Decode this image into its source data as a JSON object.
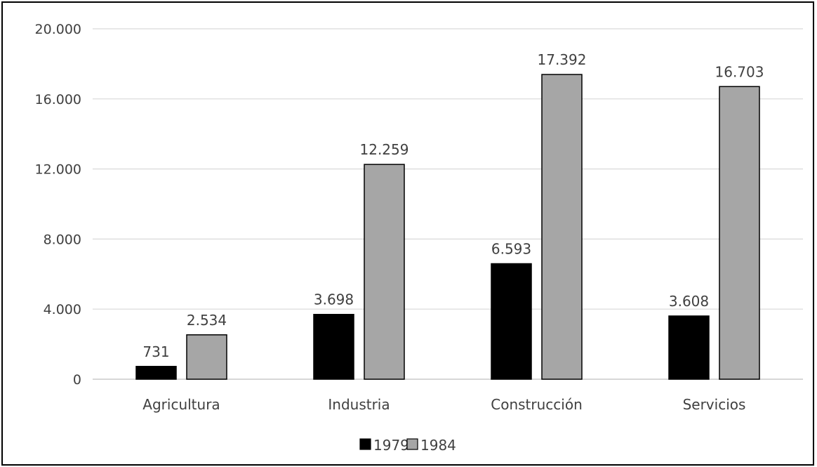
{
  "chart_data": {
    "type": "bar",
    "title": "",
    "xlabel": "",
    "ylabel": "",
    "categories": [
      "Agricultura",
      "Industria",
      "Construcción",
      "Servicios"
    ],
    "series": [
      {
        "name": "1979",
        "values": [
          731,
          3698,
          6593,
          3608
        ],
        "color": "#000000",
        "labels": [
          "731",
          "3.698",
          "6.593",
          "3.608"
        ]
      },
      {
        "name": "1984",
        "values": [
          2534,
          12259,
          17392,
          16703
        ],
        "color": "#a6a6a6",
        "labels": [
          "2.534",
          "12.259",
          "17.392",
          "16.703"
        ]
      }
    ],
    "ylim": [
      0,
      20000
    ],
    "yticks": [
      0,
      4000,
      8000,
      12000,
      16000,
      20000
    ],
    "ytick_labels": [
      "0",
      "4.000",
      "8.000",
      "12.000",
      "16.000",
      "20.000"
    ],
    "grid": true,
    "legend_position": "bottom"
  }
}
